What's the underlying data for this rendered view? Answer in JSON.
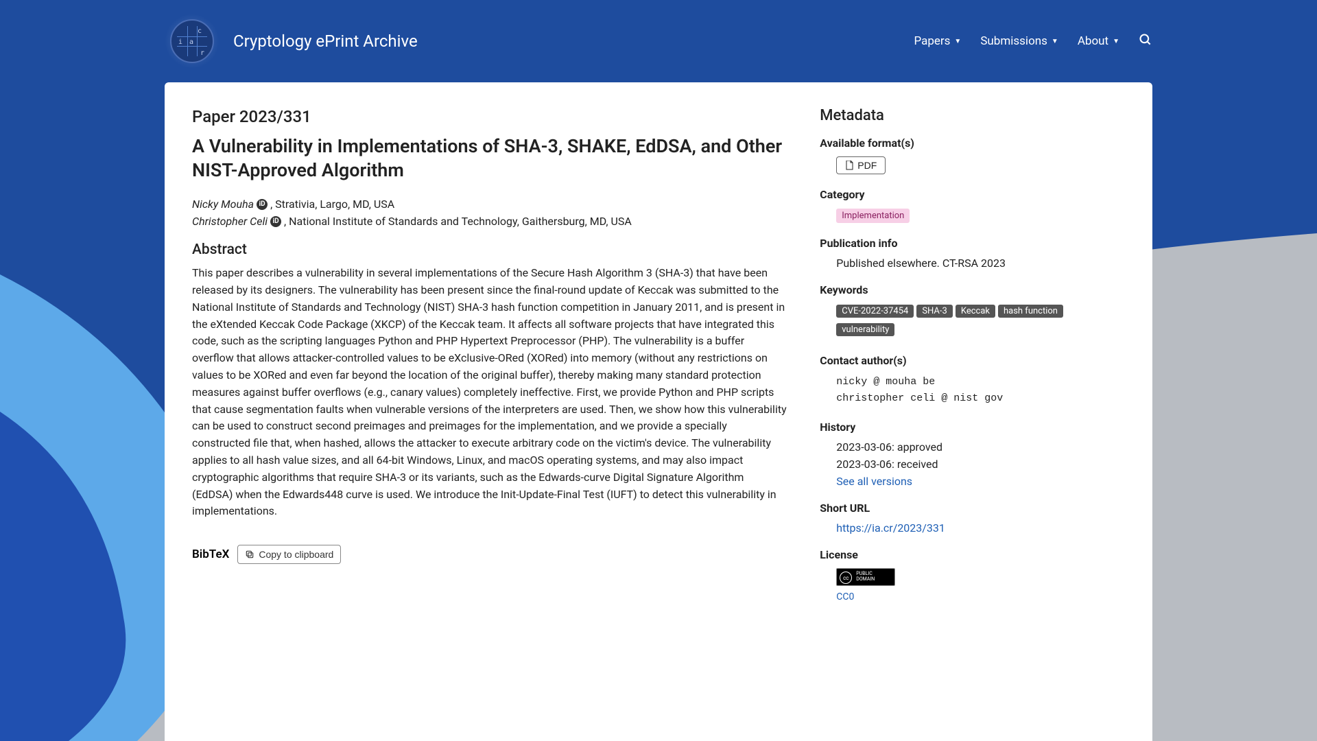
{
  "nav": {
    "brand": "Cryptology ePrint Archive",
    "items": [
      "Papers",
      "Submissions",
      "About"
    ]
  },
  "paper": {
    "id_label": "Paper 2023/331",
    "title": "A Vulnerability in Implementations of SHA-3, SHAKE, EdDSA, and Other NIST-Approved Algorithm",
    "authors": [
      {
        "name": "Nicky Mouha",
        "affiliation": ", Strativia, Largo, MD, USA"
      },
      {
        "name": "Christopher Celi",
        "affiliation": ", National Institute of Standards and Technology, Gaithersburg, MD, USA"
      }
    ],
    "abstract_heading": "Abstract",
    "abstract": "This paper describes a vulnerability in several implementations of the Secure Hash Algorithm 3 (SHA-3) that have been released by its designers. The vulnerability has been present since the final-round update of Keccak was submitted to the National Institute of Standards and Technology (NIST) SHA-3 hash function competition in January 2011, and is present in the eXtended Keccak Code Package (XKCP) of the Keccak team. It affects all software projects that have integrated this code, such as the scripting languages Python and PHP Hypertext Preprocessor (PHP). The vulnerability is a buffer overflow that allows attacker-controlled values to be eXclusive-ORed (XORed) into memory (without any restrictions on values to be XORed and even far beyond the location of the original buffer), thereby making many standard protection measures against buffer overflows (e.g., canary values) completely ineffective. First, we provide Python and PHP scripts that cause segmentation faults when vulnerable versions of the interpreters are used. Then, we show how this vulnerability can be used to construct second preimages and preimages for the implementation, and we provide a specially constructed file that, when hashed, allows the attacker to execute arbitrary code on the victim's device. The vulnerability applies to all hash value sizes, and all 64-bit Windows, Linux, and macOS operating systems, and may also impact cryptographic algorithms that require SHA-3 or its variants, such as the Edwards-curve Digital Signature Algorithm (EdDSA) when the Edwards448 curve is used. We introduce the Init-Update-Final Test (IUFT) to detect this vulnerability in implementations."
  },
  "bibtex": {
    "label": "BibTeX",
    "copy_label": "Copy to clipboard"
  },
  "metadata": {
    "heading": "Metadata",
    "format": {
      "heading": "Available format(s)",
      "pdf_label": "PDF"
    },
    "category": {
      "heading": "Category",
      "value": "Implementation",
      "badge_bg": "#f7cfe6",
      "badge_fg": "#8a2060"
    },
    "pubinfo": {
      "heading": "Publication info",
      "text": "Published elsewhere. CT-RSA 2023"
    },
    "keywords": {
      "heading": "Keywords",
      "items": [
        "CVE-2022-37454",
        "SHA-3",
        "Keccak",
        "hash function",
        "vulnerability"
      ],
      "badge_bg": "#555555",
      "badge_fg": "#ffffff"
    },
    "contacts": {
      "heading": "Contact author(s)",
      "lines": [
        "nicky @ mouha be",
        "christopher celi @ nist gov"
      ]
    },
    "history": {
      "heading": "History",
      "lines": [
        "2023-03-06: approved",
        "2023-03-06: received"
      ],
      "link": "See all versions"
    },
    "shorturl": {
      "heading": "Short URL",
      "url": "https://ia.cr/2023/331"
    },
    "license": {
      "heading": "License",
      "label": "CC0",
      "badge_text": "PUBLIC\nDOMAIN"
    }
  },
  "colors": {
    "navbar_bg": "#1e4c9e",
    "link": "#1e5fb5"
  }
}
